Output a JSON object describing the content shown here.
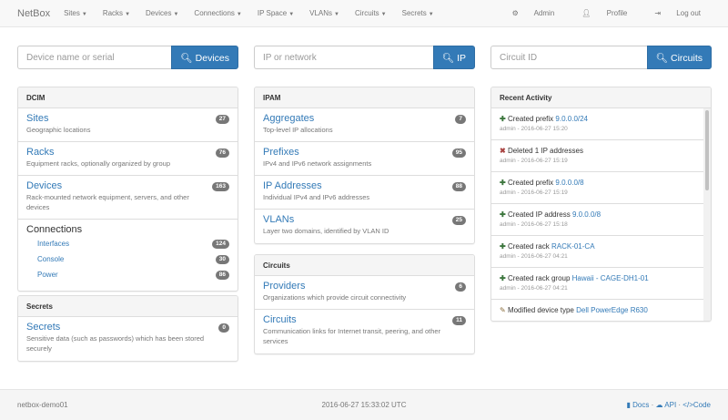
{
  "nav": {
    "brand": "NetBox",
    "menus": [
      "Sites",
      "Racks",
      "Devices",
      "Connections",
      "IP Space",
      "VLANs",
      "Circuits",
      "Secrets"
    ],
    "admin": "Admin",
    "profile": "Profile",
    "logout": "Log out"
  },
  "search": {
    "device_placeholder": "Device name or serial",
    "device_button": "Devices",
    "ip_placeholder": "IP or network",
    "ip_button": "IP",
    "circuit_placeholder": "Circuit ID",
    "circuit_button": "Circuits"
  },
  "dcim": {
    "title": "DCIM",
    "items": [
      {
        "label": "Sites",
        "desc": "Geographic locations",
        "count": "27"
      },
      {
        "label": "Racks",
        "desc": "Equipment racks, optionally organized by group",
        "count": "76"
      },
      {
        "label": "Devices",
        "desc": "Rack-mounted network equipment, servers, and other devices",
        "count": "163"
      }
    ],
    "connections": {
      "label": "Connections",
      "items": [
        {
          "label": "Interfaces",
          "count": "124"
        },
        {
          "label": "Console",
          "count": "30"
        },
        {
          "label": "Power",
          "count": "86"
        }
      ]
    }
  },
  "secrets": {
    "title": "Secrets",
    "items": [
      {
        "label": "Secrets",
        "desc": "Sensitive data (such as passwords) which has been stored securely",
        "count": "0"
      }
    ]
  },
  "ipam": {
    "title": "IPAM",
    "items": [
      {
        "label": "Aggregates",
        "desc": "Top-level IP allocations",
        "count": "7"
      },
      {
        "label": "Prefixes",
        "desc": "IPv4 and IPv6 network assignments",
        "count": "95"
      },
      {
        "label": "IP Addresses",
        "desc": "Individual IPv4 and IPv6 addresses",
        "count": "88"
      },
      {
        "label": "VLANs",
        "desc": "Layer two domains, identified by VLAN ID",
        "count": "25"
      }
    ]
  },
  "circuits": {
    "title": "Circuits",
    "items": [
      {
        "label": "Providers",
        "desc": "Organizations which provide circuit connectivity",
        "count": "6"
      },
      {
        "label": "Circuits",
        "desc": "Communication links for Internet transit, peering, and other services",
        "count": "11"
      }
    ]
  },
  "activity": {
    "title": "Recent Activity",
    "items": [
      {
        "icon": "plus-icon",
        "text": "Created prefix",
        "link": "9.0.0.0/24",
        "meta": "admin - 2016-06-27 15:20"
      },
      {
        "icon": "remove-icon",
        "text": "Deleted 1 IP addresses",
        "link": "",
        "meta": "admin - 2016-06-27 15:19"
      },
      {
        "icon": "plus-icon",
        "text": "Created prefix",
        "link": "9.0.0.0/8",
        "meta": "admin - 2016-06-27 15:19"
      },
      {
        "icon": "plus-icon",
        "text": "Created IP address",
        "link": "9.0.0.0/8",
        "meta": "admin - 2016-06-27 15:18"
      },
      {
        "icon": "plus-icon",
        "text": "Created rack",
        "link": "RACK-01-CA",
        "meta": "admin - 2016-06-27 04:21"
      },
      {
        "icon": "plus-icon",
        "text": "Created rack group",
        "link": "Hawaii - CAGE-DH1-01",
        "meta": "admin - 2016-06-27 04:21"
      },
      {
        "icon": "pencil-icon",
        "text": "Modified device type",
        "link": "Dell PowerEdge R630",
        "meta": ""
      }
    ]
  },
  "footer": {
    "host": "netbox-demo01",
    "time": "2016-06-27 15:33:02 UTC",
    "docs": "Docs",
    "api": "API",
    "code": "Code"
  },
  "colors": {
    "primary": "#337ab7",
    "badge": "#777777",
    "success": "#3c763d",
    "danger": "#a94442"
  }
}
